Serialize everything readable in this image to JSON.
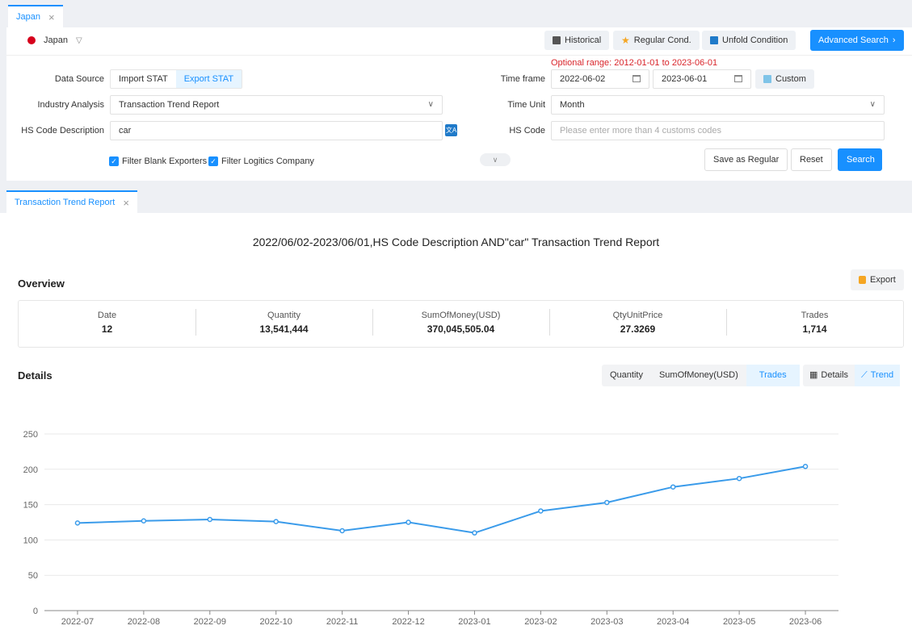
{
  "top_tab": {
    "label": "Japan"
  },
  "country": {
    "name": "Japan"
  },
  "toolbar": {
    "historical": "Historical",
    "regular_cond": "Regular Cond.",
    "unfold_condition": "Unfold Condition",
    "advanced_search": "Advanced Search"
  },
  "form": {
    "data_source_label": "Data Source",
    "data_source_options": [
      "Import STAT",
      "Export STAT"
    ],
    "data_source_selected": "Export STAT",
    "industry_label": "Industry Analysis",
    "industry_value": "Transaction Trend Report",
    "hs_desc_label": "HS Code Description",
    "hs_desc_value": "car",
    "optional_range": "Optional range:  2012-01-01 to 2023-06-01",
    "time_frame_label": "Time frame",
    "date_start": "2022-06-02",
    "date_end": "2023-06-01",
    "custom": "Custom",
    "time_unit_label": "Time Unit",
    "time_unit_value": "Month",
    "hs_code_label": "HS Code",
    "hs_code_placeholder": "Please enter more than 4 customs codes",
    "filter_blank": "Filter Blank Exporters",
    "filter_logistics": "Filter Logitics Company",
    "save_regular": "Save as Regular",
    "reset": "Reset",
    "search": "Search"
  },
  "result_tab": {
    "label": "Transaction Trend Report"
  },
  "report": {
    "title": "2022/06/02-2023/06/01,HS Code Description AND\"car\" Transaction Trend Report",
    "overview_title": "Overview",
    "export": "Export",
    "stats": [
      {
        "key": "Date",
        "value": "12"
      },
      {
        "key": "Quantity",
        "value": "13,541,444"
      },
      {
        "key": "SumOfMoney(USD)",
        "value": "370,045,505.04"
      },
      {
        "key": "QtyUnitPrice",
        "value": "27.3269"
      },
      {
        "key": "Trades",
        "value": "1,714"
      }
    ],
    "details_title": "Details",
    "metric_options": [
      "Quantity",
      "SumOfMoney(USD)",
      "Trades"
    ],
    "metric_selected": "Trades",
    "view_options": [
      "Details",
      "Trend"
    ],
    "view_selected": "Trend"
  },
  "colors": {
    "accent": "#1890ff",
    "line": "#3a9bea",
    "warning": "#d9252b"
  },
  "chart_data": {
    "type": "line",
    "x": [
      "2022-07",
      "2022-08",
      "2022-09",
      "2022-10",
      "2022-11",
      "2022-12",
      "2023-01",
      "2023-02",
      "2023-03",
      "2023-04",
      "2023-05",
      "2023-06"
    ],
    "series": [
      {
        "values": [
          124,
          127,
          129,
          126,
          113,
          125,
          110,
          141,
          153,
          175,
          187,
          204
        ]
      }
    ],
    "yticks": [
      0,
      50,
      100,
      150,
      200,
      250
    ],
    "ylim": [
      0,
      250
    ],
    "grid": true
  }
}
